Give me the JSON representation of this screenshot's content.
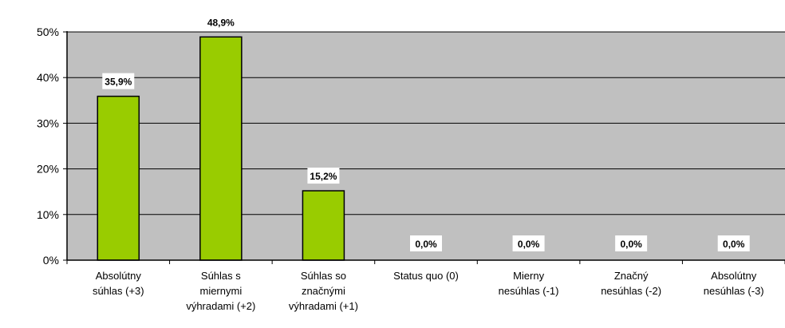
{
  "chart_data": {
    "type": "bar",
    "categories": [
      [
        "Absolútny",
        "súhlas (+3)"
      ],
      [
        "Súhlas s",
        "miernymi",
        "výhradami (+2)"
      ],
      [
        "Súhlas so",
        "značnými",
        "výhradami (+1)"
      ],
      [
        "Status quo (0)"
      ],
      [
        "Mierny",
        "nesúhlas (-1)"
      ],
      [
        "Značný",
        "nesúhlas (-2)"
      ],
      [
        "Absolútny",
        "nesúhlas (-3)"
      ]
    ],
    "values": [
      35.9,
      48.9,
      15.2,
      0.0,
      0.0,
      0.0,
      0.0
    ],
    "data_labels": [
      "35,9%",
      "48,9%",
      "15,2%",
      "0,0%",
      "0,0%",
      "0,0%",
      "0,0%"
    ],
    "y_ticks": [
      0,
      10,
      20,
      30,
      40,
      50
    ],
    "y_tick_labels": [
      "0%",
      "10%",
      "20%",
      "30%",
      "40%",
      "50%"
    ],
    "ylim": [
      0,
      50
    ],
    "grid": true,
    "legend": "none",
    "title": "",
    "xlabel": "",
    "ylabel": "",
    "colors": {
      "bar_fill": "#99cc00",
      "bar_stroke": "#000000",
      "plot_background": "#c0c0c0",
      "gridline": "#000000",
      "axis": "#000000",
      "text": "#000000",
      "label_box": "#ffffff"
    }
  }
}
